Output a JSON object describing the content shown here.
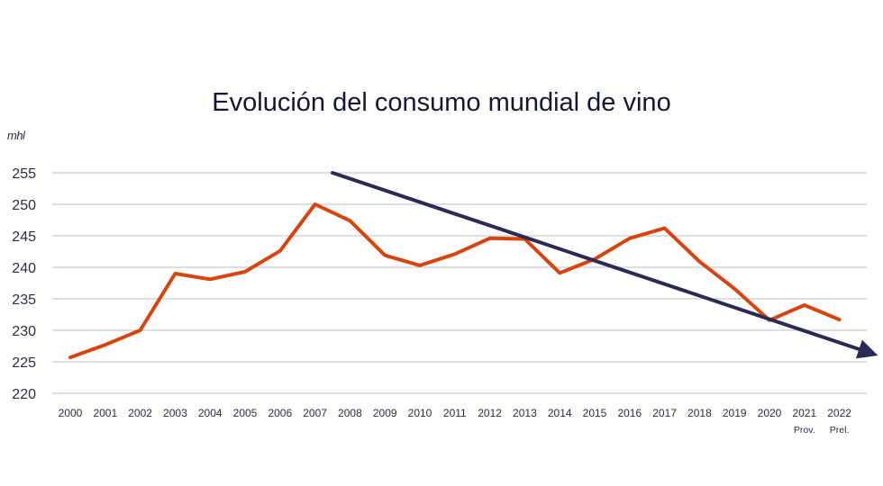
{
  "chart_data": {
    "type": "line",
    "title": "Evolución del consumo mundial de vino",
    "ylabel": "mhl",
    "xlabel": "",
    "ylim": [
      220,
      255
    ],
    "yticks": [
      220,
      225,
      230,
      235,
      240,
      245,
      250,
      255
    ],
    "grid": true,
    "categories": [
      "2000",
      "2001",
      "2002",
      "2003",
      "2004",
      "2005",
      "2006",
      "2007",
      "2008",
      "2009",
      "2010",
      "2011",
      "2012",
      "2013",
      "2014",
      "2015",
      "2016",
      "2017",
      "2018",
      "2019",
      "2020",
      "2021",
      "2022"
    ],
    "category_sublabels": {
      "2021": "Prov.",
      "2022": "Prel."
    },
    "series": [
      {
        "name": "Consumo mundial de vino",
        "color": "#d9440e",
        "values": [
          225.7,
          227.7,
          230.0,
          239.0,
          238.1,
          239.3,
          242.6,
          250.0,
          247.4,
          241.9,
          240.3,
          242.1,
          244.6,
          244.5,
          239.1,
          241.3,
          244.6,
          246.2,
          240.9,
          236.6,
          231.6,
          234.0,
          231.7
        ]
      }
    ],
    "annotations": [
      {
        "type": "trend-arrow",
        "color": "#2b2a55",
        "from": {
          "x": 2007.5,
          "y": 255.0
        },
        "to": {
          "x": 2023.1,
          "y": 226.0
        }
      }
    ]
  }
}
